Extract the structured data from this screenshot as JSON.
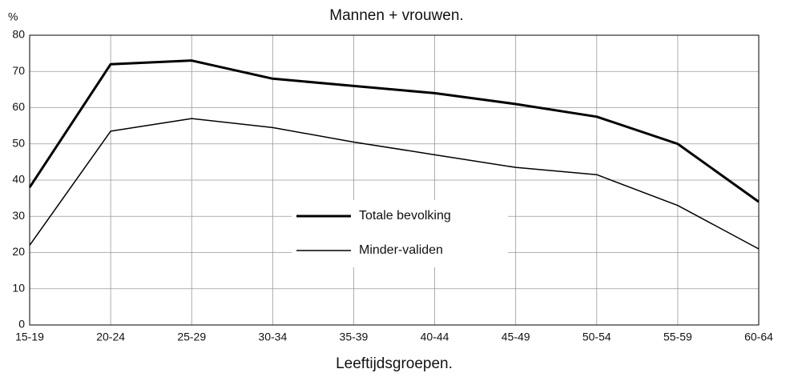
{
  "chart_data": {
    "type": "line",
    "title": "Mannen + vrouwen.",
    "y_label": "%",
    "x_label": "Leeftijdsgroepen.",
    "categories": [
      "15-19",
      "20-24",
      "25-29",
      "30-34",
      "35-39",
      "40-44",
      "45-49",
      "50-54",
      "55-59",
      "60-64"
    ],
    "series": [
      {
        "name": "Totale bevolking",
        "color": "#000000",
        "width": 3,
        "values": [
          38,
          72,
          73,
          68,
          66,
          64,
          61,
          57.5,
          50,
          34
        ]
      },
      {
        "name": "Minder-validen",
        "color": "#000000",
        "width": 1.5,
        "values": [
          22,
          53.5,
          57,
          54.5,
          50.5,
          47,
          43.5,
          41.5,
          33,
          21
        ]
      }
    ],
    "ylim": [
      0,
      80
    ],
    "yticks": [
      0,
      10,
      20,
      30,
      40,
      50,
      60,
      70,
      80
    ],
    "grid": true,
    "legend": "center"
  }
}
